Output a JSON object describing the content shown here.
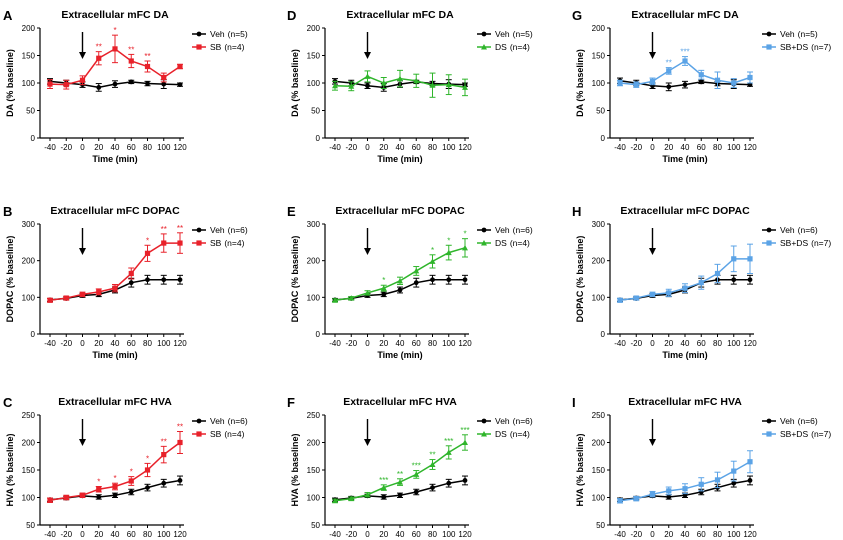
{
  "figure": {
    "panel_letters": [
      "A",
      "D",
      "G",
      "B",
      "E",
      "H",
      "C",
      "F",
      "I"
    ]
  },
  "colors": {
    "veh": "#000000",
    "SB": "#e8212a",
    "DS": "#2fb52b",
    "SB+DS": "#5ba3e6"
  },
  "chart_data": [
    {
      "type": "line",
      "panel": "A",
      "title": "Extracellular mFC DA",
      "xlabel": "Time (min)",
      "ylabel": "DA (% baseline)",
      "x": [
        -40,
        -20,
        0,
        20,
        40,
        60,
        80,
        100,
        120
      ],
      "ylim": [
        0,
        200
      ],
      "yticks": [
        0,
        50,
        100,
        150,
        200
      ],
      "xticks": [
        -40,
        -20,
        0,
        20,
        40,
        60,
        80,
        100,
        120
      ],
      "arrow_x": 0,
      "series": [
        {
          "name": "Veh",
          "n_label": "(n=5)",
          "color_key": "veh",
          "marker": "circle",
          "values": [
            103,
            100,
            97,
            92,
            98,
            102,
            99,
            98,
            97
          ],
          "err": [
            5,
            5,
            5,
            7,
            6,
            3,
            4,
            8,
            3
          ],
          "sig": [
            "",
            "",
            "",
            "",
            "",
            "",
            "",
            "",
            ""
          ]
        },
        {
          "name": "SB",
          "n_label": "(n=4)",
          "color_key": "SB",
          "marker": "square",
          "values": [
            98,
            97,
            105,
            145,
            162,
            140,
            130,
            110,
            130
          ],
          "err": [
            8,
            8,
            8,
            12,
            25,
            12,
            10,
            8,
            4
          ],
          "sig": [
            "",
            "",
            "",
            "**",
            "*",
            "**",
            "**",
            "",
            ""
          ]
        }
      ]
    },
    {
      "type": "line",
      "panel": "D",
      "title": "Extracellular mFC DA",
      "xlabel": "Time (min)",
      "ylabel": "DA (% baseline)",
      "x": [
        -40,
        -20,
        0,
        20,
        40,
        60,
        80,
        100,
        120
      ],
      "ylim": [
        0,
        200
      ],
      "yticks": [
        0,
        50,
        100,
        150,
        200
      ],
      "xticks": [
        -40,
        -20,
        0,
        20,
        40,
        60,
        80,
        100,
        120
      ],
      "arrow_x": 0,
      "series": [
        {
          "name": "Veh",
          "n_label": "(n=5)",
          "color_key": "veh",
          "marker": "circle",
          "values": [
            103,
            100,
            95,
            92,
            98,
            102,
            99,
            98,
            97
          ],
          "err": [
            5,
            5,
            5,
            7,
            6,
            3,
            4,
            8,
            3
          ],
          "sig": [
            "",
            "",
            "",
            "",
            "",
            "",
            "",
            "",
            ""
          ]
        },
        {
          "name": "DS",
          "n_label": "(n=4)",
          "color_key": "DS",
          "marker": "triangle",
          "values": [
            95,
            94,
            112,
            100,
            108,
            104,
            96,
            97,
            92
          ],
          "err": [
            8,
            8,
            10,
            10,
            15,
            12,
            22,
            18,
            15
          ],
          "sig": [
            "",
            "",
            "",
            "",
            "",
            "",
            "",
            "",
            ""
          ]
        }
      ]
    },
    {
      "type": "line",
      "panel": "G",
      "title": "Extracellular mFC DA",
      "xlabel": "Time (min)",
      "ylabel": "DA (% baseline)",
      "x": [
        -40,
        -20,
        0,
        20,
        40,
        60,
        80,
        100,
        120
      ],
      "ylim": [
        0,
        200
      ],
      "yticks": [
        0,
        50,
        100,
        150,
        200
      ],
      "xticks": [
        -40,
        -20,
        0,
        20,
        40,
        60,
        80,
        100,
        120
      ],
      "arrow_x": 0,
      "series": [
        {
          "name": "Veh",
          "n_label": "(n=5)",
          "color_key": "veh",
          "marker": "circle",
          "values": [
            104,
            100,
            95,
            93,
            97,
            102,
            99,
            98,
            97
          ],
          "err": [
            5,
            5,
            5,
            7,
            6,
            3,
            4,
            8,
            3
          ],
          "sig": [
            "",
            "",
            "",
            "",
            "",
            "",
            "",
            "",
            ""
          ]
        },
        {
          "name": "SB+DS",
          "n_label": "(n=7)",
          "color_key": "SB+DS",
          "marker": "square",
          "values": [
            100,
            97,
            103,
            122,
            140,
            115,
            105,
            100,
            110
          ],
          "err": [
            5,
            5,
            6,
            6,
            8,
            8,
            15,
            8,
            10
          ],
          "sig": [
            "",
            "",
            "",
            "**",
            "***",
            "",
            "",
            "",
            ""
          ]
        }
      ]
    },
    {
      "type": "line",
      "panel": "B",
      "title": "Extracellular mFC DOPAC",
      "xlabel": "Time (min)",
      "ylabel": "DOPAC (% baseline)",
      "x": [
        -40,
        -20,
        0,
        20,
        40,
        60,
        80,
        100,
        120
      ],
      "ylim": [
        0,
        300
      ],
      "yticks": [
        0,
        100,
        200,
        300
      ],
      "xticks": [
        -40,
        -20,
        0,
        20,
        40,
        60,
        80,
        100,
        120
      ],
      "arrow_x": 0,
      "series": [
        {
          "name": "Veh",
          "n_label": "(n=6)",
          "color_key": "veh",
          "marker": "circle",
          "values": [
            93,
            97,
            105,
            108,
            120,
            140,
            148,
            148,
            148
          ],
          "err": [
            4,
            4,
            5,
            6,
            8,
            12,
            12,
            12,
            12
          ],
          "sig": [
            "",
            "",
            "",
            "",
            "",
            "",
            "",
            "",
            ""
          ]
        },
        {
          "name": "SB",
          "n_label": "(n=4)",
          "color_key": "SB",
          "marker": "square",
          "values": [
            92,
            98,
            108,
            115,
            125,
            165,
            220,
            248,
            248
          ],
          "err": [
            5,
            5,
            6,
            8,
            10,
            15,
            22,
            25,
            28
          ],
          "sig": [
            "",
            "",
            "",
            "",
            "",
            "",
            "*",
            "**",
            "**"
          ]
        }
      ]
    },
    {
      "type": "line",
      "panel": "E",
      "title": "Extracellular mFC DOPAC",
      "xlabel": "Time (min)",
      "ylabel": "DOPAC (% baseline)",
      "x": [
        -40,
        -20,
        0,
        20,
        40,
        60,
        80,
        100,
        120
      ],
      "ylim": [
        0,
        300
      ],
      "yticks": [
        0,
        100,
        200,
        300
      ],
      "xticks": [
        -40,
        -20,
        0,
        20,
        40,
        60,
        80,
        100,
        120
      ],
      "arrow_x": 0,
      "series": [
        {
          "name": "Veh",
          "n_label": "(n=6)",
          "color_key": "veh",
          "marker": "circle",
          "values": [
            93,
            97,
            105,
            108,
            120,
            140,
            148,
            148,
            148
          ],
          "err": [
            4,
            4,
            5,
            6,
            8,
            12,
            12,
            12,
            12
          ],
          "sig": [
            "",
            "",
            "",
            "",
            "",
            "",
            "",
            "",
            ""
          ]
        },
        {
          "name": "DS",
          "n_label": "(n=4)",
          "color_key": "DS",
          "marker": "triangle",
          "values": [
            92,
            98,
            112,
            125,
            145,
            172,
            198,
            222,
            235
          ],
          "err": [
            4,
            4,
            6,
            8,
            10,
            12,
            18,
            20,
            25
          ],
          "sig": [
            "",
            "",
            "",
            "*",
            "",
            "",
            "*",
            "*",
            "*"
          ]
        }
      ]
    },
    {
      "type": "line",
      "panel": "H",
      "title": "Extracellular mFC DOPAC",
      "xlabel": "Time (min)",
      "ylabel": "DOPAC (% baseline)",
      "x": [
        -40,
        -20,
        0,
        20,
        40,
        60,
        80,
        100,
        120
      ],
      "ylim": [
        0,
        300
      ],
      "yticks": [
        0,
        100,
        200,
        300
      ],
      "xticks": [
        -40,
        -20,
        0,
        20,
        40,
        60,
        80,
        100,
        120
      ],
      "arrow_x": 0,
      "series": [
        {
          "name": "Veh",
          "n_label": "(n=6)",
          "color_key": "veh",
          "marker": "circle",
          "values": [
            93,
            97,
            105,
            108,
            120,
            140,
            148,
            148,
            148
          ],
          "err": [
            4,
            4,
            5,
            6,
            8,
            12,
            12,
            12,
            12
          ],
          "sig": [
            "",
            "",
            "",
            "",
            "",
            "",
            "",
            "",
            ""
          ]
        },
        {
          "name": "SB+DS",
          "n_label": "(n=7)",
          "color_key": "SB+DS",
          "marker": "square",
          "values": [
            92,
            98,
            108,
            112,
            125,
            140,
            165,
            205,
            205
          ],
          "err": [
            5,
            5,
            6,
            10,
            12,
            18,
            25,
            35,
            40
          ],
          "sig": [
            "",
            "",
            "",
            "",
            "",
            "",
            "",
            "",
            ""
          ]
        }
      ]
    },
    {
      "type": "line",
      "panel": "C",
      "title": "Extracellular mFC HVA",
      "xlabel": "Time (min)",
      "ylabel": "HVA (% baseline)",
      "x": [
        -40,
        -20,
        0,
        20,
        40,
        60,
        80,
        100,
        120
      ],
      "ylim": [
        50,
        250
      ],
      "yticks": [
        50,
        100,
        150,
        200,
        250
      ],
      "xticks": [
        -40,
        -20,
        0,
        20,
        40,
        60,
        80,
        100,
        120
      ],
      "arrow_x": 0,
      "series": [
        {
          "name": "Veh",
          "n_label": "(n=6)",
          "color_key": "veh",
          "marker": "circle",
          "values": [
            96,
            99,
            103,
            101,
            104,
            110,
            118,
            126,
            131
          ],
          "err": [
            3,
            3,
            3,
            4,
            4,
            5,
            6,
            7,
            8
          ],
          "sig": [
            "",
            "",
            "",
            "",
            "",
            "",
            "",
            "",
            ""
          ]
        },
        {
          "name": "SB",
          "n_label": "(n=4)",
          "color_key": "SB",
          "marker": "square",
          "values": [
            95,
            100,
            104,
            115,
            120,
            130,
            150,
            178,
            200
          ],
          "err": [
            4,
            4,
            4,
            5,
            6,
            8,
            12,
            15,
            20
          ],
          "sig": [
            "",
            "",
            "",
            "*",
            "*",
            "*",
            "*",
            "**",
            "**"
          ]
        }
      ]
    },
    {
      "type": "line",
      "panel": "F",
      "title": "Extracellular mFC HVA",
      "xlabel": "Time (min)",
      "ylabel": "HVA (% baseline)",
      "x": [
        -40,
        -20,
        0,
        20,
        40,
        60,
        80,
        100,
        120
      ],
      "ylim": [
        50,
        250
      ],
      "yticks": [
        50,
        100,
        150,
        200,
        250
      ],
      "xticks": [
        -40,
        -20,
        0,
        20,
        40,
        60,
        80,
        100,
        120
      ],
      "arrow_x": 0,
      "series": [
        {
          "name": "Veh",
          "n_label": "(n=6)",
          "color_key": "veh",
          "marker": "circle",
          "values": [
            96,
            99,
            103,
            101,
            104,
            110,
            118,
            126,
            131
          ],
          "err": [
            3,
            3,
            3,
            4,
            4,
            5,
            6,
            7,
            8
          ],
          "sig": [
            "",
            "",
            "",
            "",
            "",
            "",
            "",
            "",
            ""
          ]
        },
        {
          "name": "DS",
          "n_label": "(n=4)",
          "color_key": "DS",
          "marker": "triangle",
          "values": [
            94,
            98,
            105,
            118,
            128,
            142,
            160,
            182,
            200
          ],
          "err": [
            3,
            3,
            4,
            5,
            6,
            7,
            9,
            12,
            14
          ],
          "sig": [
            "",
            "",
            "",
            "***",
            "**",
            "***",
            "**",
            "***",
            "***"
          ]
        }
      ]
    },
    {
      "type": "line",
      "panel": "I",
      "title": "Extracellular mFC HVA",
      "xlabel": "Time (min)",
      "ylabel": "HVA (% baseline)",
      "x": [
        -40,
        -20,
        0,
        20,
        40,
        60,
        80,
        100,
        120
      ],
      "ylim": [
        50,
        250
      ],
      "yticks": [
        50,
        100,
        150,
        200,
        250
      ],
      "xticks": [
        -40,
        -20,
        0,
        20,
        40,
        60,
        80,
        100,
        120
      ],
      "arrow_x": 0,
      "series": [
        {
          "name": "Veh",
          "n_label": "(n=6)",
          "color_key": "veh",
          "marker": "circle",
          "values": [
            96,
            99,
            103,
            101,
            104,
            110,
            118,
            126,
            131
          ],
          "err": [
            3,
            3,
            3,
            4,
            4,
            5,
            6,
            7,
            8
          ],
          "sig": [
            "",
            "",
            "",
            "",
            "",
            "",
            "",
            "",
            ""
          ]
        },
        {
          "name": "SB+DS",
          "n_label": "(n=7)",
          "color_key": "SB+DS",
          "marker": "square",
          "values": [
            94,
            98,
            106,
            112,
            116,
            124,
            132,
            148,
            165
          ],
          "err": [
            4,
            4,
            5,
            7,
            9,
            12,
            14,
            18,
            20
          ],
          "sig": [
            "",
            "",
            "",
            "",
            "",
            "",
            "",
            "",
            ""
          ]
        }
      ]
    }
  ]
}
